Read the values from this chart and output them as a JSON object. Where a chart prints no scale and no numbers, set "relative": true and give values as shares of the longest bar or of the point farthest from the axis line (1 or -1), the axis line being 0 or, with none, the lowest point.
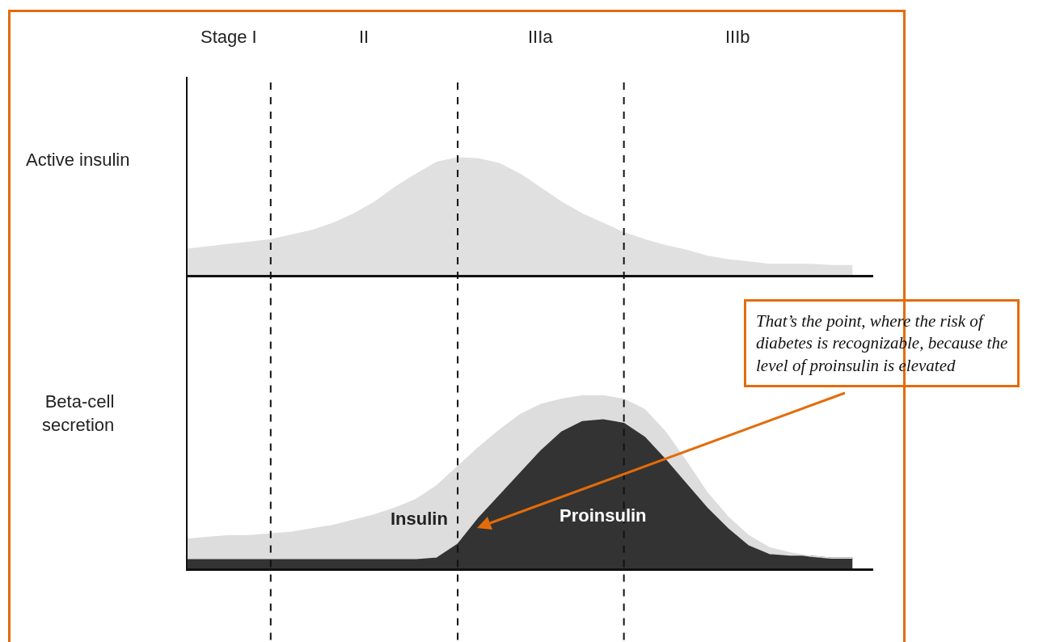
{
  "chart_data": [
    {
      "type": "area",
      "relative": true,
      "ylabel": "Active insulin",
      "categories": [
        null,
        null,
        null,
        null,
        null,
        null,
        null,
        null,
        null,
        null,
        null,
        null,
        null,
        null,
        null,
        null,
        null,
        null,
        null,
        null,
        null,
        null,
        null,
        null,
        null,
        null,
        null,
        null,
        null,
        null,
        null,
        null,
        null
      ],
      "series": [
        {
          "color": "#e0e0e0",
          "values": [
            0.22,
            0.24,
            0.26,
            0.28,
            0.3,
            0.34,
            0.38,
            0.44,
            0.52,
            0.62,
            0.75,
            0.86,
            0.96,
            1.0,
            0.99,
            0.95,
            0.86,
            0.74,
            0.62,
            0.52,
            0.44,
            0.36,
            0.3,
            0.25,
            0.21,
            0.16,
            0.13,
            0.11,
            0.09,
            0.09,
            0.09,
            0.08,
            0.08
          ]
        }
      ],
      "grid": "x",
      "annotations": [
        "Stage I",
        "II",
        "IIIa",
        "IIIb"
      ]
    },
    {
      "type": "area",
      "relative": true,
      "stacked": true,
      "ylabel": "Beta-cell secretion",
      "categories": [
        null,
        null,
        null,
        null,
        null,
        null,
        null,
        null,
        null,
        null,
        null,
        null,
        null,
        null,
        null,
        null,
        null,
        null,
        null,
        null,
        null,
        null,
        null,
        null,
        null,
        null,
        null,
        null,
        null,
        null,
        null,
        null,
        null
      ],
      "series": [
        {
          "name": "Proinsulin",
          "color": "#333333",
          "values": [
            0.05,
            0.05,
            0.05,
            0.05,
            0.05,
            0.05,
            0.05,
            0.05,
            0.05,
            0.05,
            0.05,
            0.05,
            0.06,
            0.14,
            0.29,
            0.42,
            0.55,
            0.68,
            0.79,
            0.85,
            0.86,
            0.84,
            0.76,
            0.63,
            0.49,
            0.35,
            0.23,
            0.13,
            0.08,
            0.07,
            0.07,
            0.06,
            0.06
          ]
        },
        {
          "name": "Insulin",
          "color": "#dddddd",
          "values": [
            0.12,
            0.13,
            0.14,
            0.14,
            0.15,
            0.16,
            0.18,
            0.2,
            0.23,
            0.26,
            0.3,
            0.35,
            0.42,
            0.45,
            0.41,
            0.38,
            0.34,
            0.27,
            0.19,
            0.15,
            0.14,
            0.14,
            0.16,
            0.16,
            0.13,
            0.09,
            0.07,
            0.06,
            0.04,
            0.02,
            0.0,
            0.0,
            0.0
          ]
        }
      ],
      "grid": "x",
      "annotations": [
        "That’s the point, where the risk of diabetes is recognizable, because the level of proinsulin is elevated"
      ]
    }
  ]
}
